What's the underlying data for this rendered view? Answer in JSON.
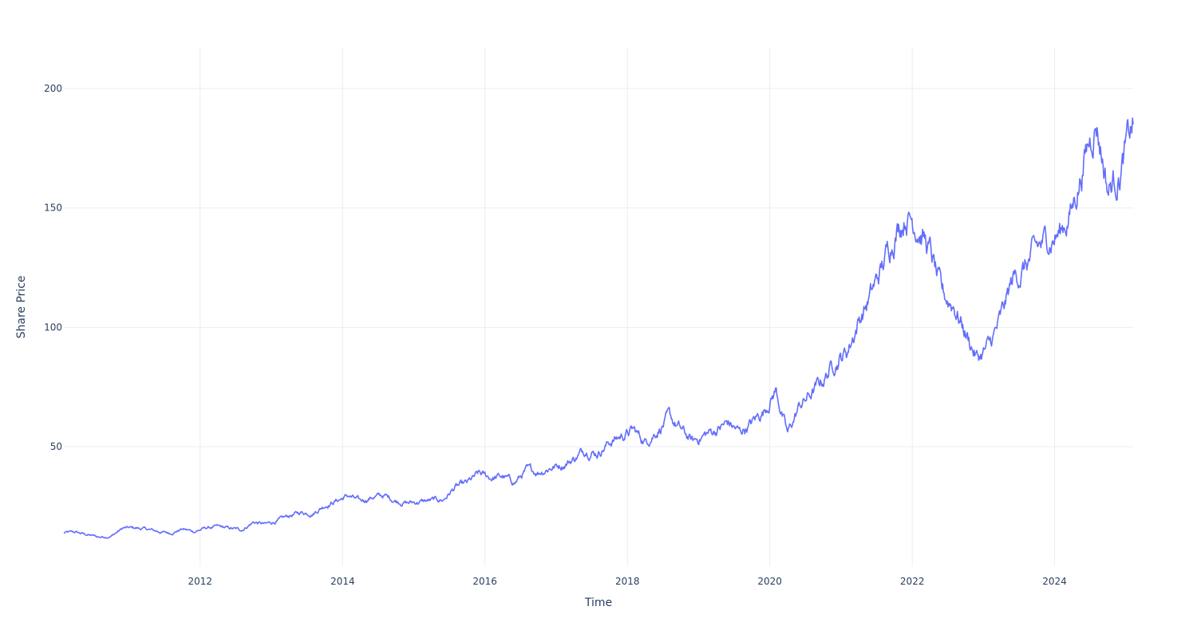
{
  "chart_data": {
    "type": "line",
    "xlabel": "Time",
    "ylabel": "Share Price",
    "xlim": [
      "2010-02-01",
      "2025-02-07"
    ],
    "ylim": [
      0,
      217
    ],
    "x_ticks": [
      "2012",
      "2014",
      "2016",
      "2018",
      "2020",
      "2022",
      "2024"
    ],
    "y_ticks": [
      50,
      100,
      150,
      200
    ],
    "grid": true,
    "legend": "none",
    "line_color": "#636efa",
    "series": [
      {
        "x": [
          "2010-02-01",
          "2010-04-01",
          "2010-06-01",
          "2010-08-01",
          "2010-10-01",
          "2010-12-01",
          "2011-02-01",
          "2011-04-01",
          "2011-06-01",
          "2011-08-01",
          "2011-10-01",
          "2011-12-01",
          "2012-02-01",
          "2012-04-01",
          "2012-06-01",
          "2012-08-01",
          "2012-10-01",
          "2012-12-01",
          "2013-02-01",
          "2013-04-01",
          "2013-06-01",
          "2013-08-01",
          "2013-10-01",
          "2013-12-01",
          "2014-02-01",
          "2014-04-01",
          "2014-06-01",
          "2014-08-01",
          "2014-10-01",
          "2014-12-01",
          "2015-02-01",
          "2015-04-01",
          "2015-06-01",
          "2015-08-01",
          "2015-10-01",
          "2015-12-01",
          "2016-02-01",
          "2016-04-01",
          "2016-06-01",
          "2016-08-01",
          "2016-10-01",
          "2016-12-01",
          "2017-02-01",
          "2017-04-01",
          "2017-06-01",
          "2017-08-01",
          "2017-10-01",
          "2017-12-01",
          "2018-02-01",
          "2018-04-01",
          "2018-06-01",
          "2018-08-01",
          "2018-10-01",
          "2018-12-01",
          "2019-02-01",
          "2019-04-01",
          "2019-06-01",
          "2019-08-01",
          "2019-10-01",
          "2019-12-01",
          "2020-02-01",
          "2020-04-01",
          "2020-06-01",
          "2020-08-01",
          "2020-10-01",
          "2020-12-01",
          "2021-02-01",
          "2021-04-01",
          "2021-06-01",
          "2021-08-01",
          "2021-10-01",
          "2021-12-01",
          "2022-02-01",
          "2022-04-01",
          "2022-06-01",
          "2022-08-01",
          "2022-10-01",
          "2022-12-01",
          "2023-02-01",
          "2023-04-01",
          "2023-06-01",
          "2023-08-01",
          "2023-10-01",
          "2023-12-01",
          "2024-02-01",
          "2024-04-01",
          "2024-06-01",
          "2024-08-01",
          "2024-10-01",
          "2024-12-01",
          "2025-02-07"
        ],
        "values": [
          14.0,
          14.2,
          13.2,
          12.2,
          12.6,
          15.9,
          16.0,
          15.5,
          14.5,
          13.8,
          15.6,
          14.5,
          16.0,
          16.5,
          15.8,
          15.2,
          18.5,
          17.5,
          19.0,
          21.0,
          22.5,
          22.2,
          25.5,
          27.5,
          29.5,
          27.0,
          29.0,
          29.5,
          27.5,
          26.5,
          27.0,
          27.5,
          27.8,
          33.0,
          34.5,
          38.5,
          37.0,
          37.5,
          35.0,
          40.0,
          39.5,
          41.5,
          42.5,
          45.0,
          49.0,
          47.5,
          52.0,
          54.5,
          57.0,
          52.0,
          57.0,
          62.0,
          57.0,
          52.0,
          55.0,
          57.0,
          60.0,
          56.0,
          60.0,
          65.0,
          74.0,
          55.0,
          67.0,
          72.0,
          78.0,
          86.0,
          90.0,
          103.0,
          113.0,
          125.0,
          140.0,
          148.0,
          143.0,
          132.0,
          113.0,
          110.0,
          98.0,
          87.0,
          92.0,
          103.0,
          120.0,
          125.0,
          132.0,
          137.0,
          140.0,
          150.0,
          170.0,
          188.0,
          158.0,
          165.0,
          185.0
        ]
      }
    ]
  }
}
